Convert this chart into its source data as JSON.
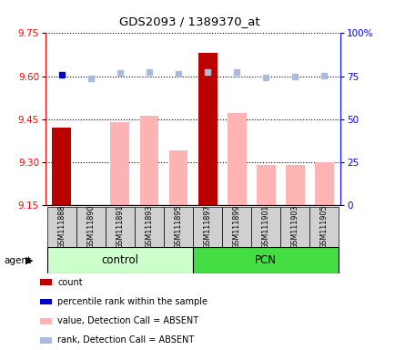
{
  "title": "GDS2093 / 1389370_at",
  "samples": [
    "GSM111888",
    "GSM111890",
    "GSM111891",
    "GSM111893",
    "GSM111895",
    "GSM111897",
    "GSM111899",
    "GSM111901",
    "GSM111903",
    "GSM111905"
  ],
  "bar_values": [
    9.42,
    null,
    9.44,
    9.46,
    9.34,
    9.68,
    9.47,
    9.29,
    9.29,
    9.3
  ],
  "bar_colors": [
    "#bb0000",
    null,
    "#ffb3b3",
    "#ffb3b3",
    "#ffb3b3",
    "#bb0000",
    "#ffb3b3",
    "#ffb3b3",
    "#ffb3b3",
    "#ffb3b3"
  ],
  "rank_values": [
    9.605,
    9.592,
    9.612,
    9.614,
    9.609,
    9.613,
    9.615,
    9.594,
    9.597,
    9.601
  ],
  "rank_colors": [
    "#0000cc",
    "#aabbdd",
    "#aabbdd",
    "#aabbdd",
    "#aabbdd",
    "#aabbdd",
    "#aabbdd",
    "#aabbdd",
    "#aabbdd",
    "#aabbdd"
  ],
  "ymin": 9.15,
  "ymax": 9.75,
  "yticks": [
    9.15,
    9.3,
    9.45,
    9.6,
    9.75
  ],
  "y2min": 0,
  "y2max": 100,
  "y2ticks": [
    0,
    25,
    50,
    75,
    100
  ],
  "y2ticklabels": [
    "0",
    "25",
    "50",
    "75",
    "100%"
  ],
  "ctrl_indices": [
    0,
    1,
    2,
    3,
    4
  ],
  "pcn_indices": [
    5,
    6,
    7,
    8,
    9
  ],
  "ctrl_color": "#ccffcc",
  "pcn_color": "#44dd44",
  "legend_items": [
    {
      "color": "#bb0000",
      "label": "count"
    },
    {
      "color": "#0000cc",
      "label": "percentile rank within the sample"
    },
    {
      "color": "#ffb3b3",
      "label": "value, Detection Call = ABSENT"
    },
    {
      "color": "#aabbdd",
      "label": "rank, Detection Call = ABSENT"
    }
  ]
}
